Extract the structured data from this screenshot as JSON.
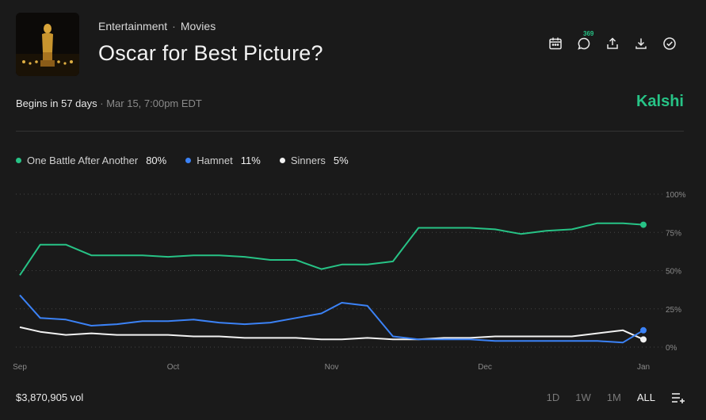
{
  "header": {
    "category": "Entertainment",
    "subcategory": "Movies",
    "title": "Oscar for Best Picture?",
    "comment_count": "369",
    "icons": [
      "calendar-icon",
      "comment-icon",
      "share-icon",
      "download-icon",
      "check-circle-icon"
    ]
  },
  "event": {
    "begins_label": "Begins in 57 days",
    "separator": "·",
    "date": "Mar 15, 7:00pm EDT",
    "brand": "Kalshi"
  },
  "legend": [
    {
      "name": "One Battle After Another",
      "value": "80%",
      "color": "#27c386"
    },
    {
      "name": "Hamnet",
      "value": "11%",
      "color": "#3b82f6"
    },
    {
      "name": "Sinners",
      "value": "5%",
      "color": "#f2f2f2"
    }
  ],
  "footer": {
    "volume": "$3,870,905 vol",
    "ranges": [
      "1D",
      "1W",
      "1M",
      "ALL"
    ],
    "active_range": "ALL"
  },
  "colors": {
    "background": "#1a1a1a",
    "accent": "#27c386",
    "blue": "#3b82f6",
    "white": "#f2f2f2",
    "grid": "#444444"
  },
  "chart_data": {
    "type": "line",
    "x": [
      "2025-09-01",
      "2025-09-05",
      "2025-09-10",
      "2025-09-15",
      "2025-09-20",
      "2025-09-25",
      "2025-09-30",
      "2025-10-05",
      "2025-10-10",
      "2025-10-15",
      "2025-10-20",
      "2025-10-25",
      "2025-10-30",
      "2025-11-03",
      "2025-11-08",
      "2025-11-13",
      "2025-11-18",
      "2025-11-23",
      "2025-11-28",
      "2025-12-03",
      "2025-12-08",
      "2025-12-13",
      "2025-12-18",
      "2025-12-23",
      "2025-12-28",
      "2026-01-01"
    ],
    "xticks": [
      "Sep",
      "Oct",
      "Nov",
      "Dec",
      "Jan"
    ],
    "xtick_dates": [
      "2025-09-01",
      "2025-10-01",
      "2025-11-01",
      "2025-12-01",
      "2026-01-01"
    ],
    "yticks": [
      "100%",
      "75%",
      "50%",
      "25%",
      "0%"
    ],
    "ylim": [
      0,
      100
    ],
    "series": [
      {
        "name": "One Battle After Another",
        "color": "#27c386",
        "values": [
          47,
          67,
          67,
          60,
          60,
          60,
          59,
          60,
          60,
          59,
          57,
          57,
          51,
          54,
          54,
          56,
          78,
          78,
          78,
          77,
          74,
          76,
          77,
          81,
          81,
          80
        ]
      },
      {
        "name": "Hamnet",
        "color": "#3b82f6",
        "values": [
          34,
          19,
          18,
          14,
          15,
          17,
          17,
          18,
          16,
          15,
          16,
          19,
          22,
          29,
          27,
          7,
          5,
          5,
          5,
          4,
          4,
          4,
          4,
          4,
          3,
          11
        ]
      },
      {
        "name": "Sinners",
        "color": "#f2f2f2",
        "values": [
          13,
          10,
          8,
          9,
          8,
          8,
          8,
          7,
          7,
          6,
          6,
          6,
          5,
          5,
          6,
          5,
          5,
          6,
          6,
          7,
          7,
          7,
          7,
          9,
          11,
          5
        ]
      }
    ]
  }
}
